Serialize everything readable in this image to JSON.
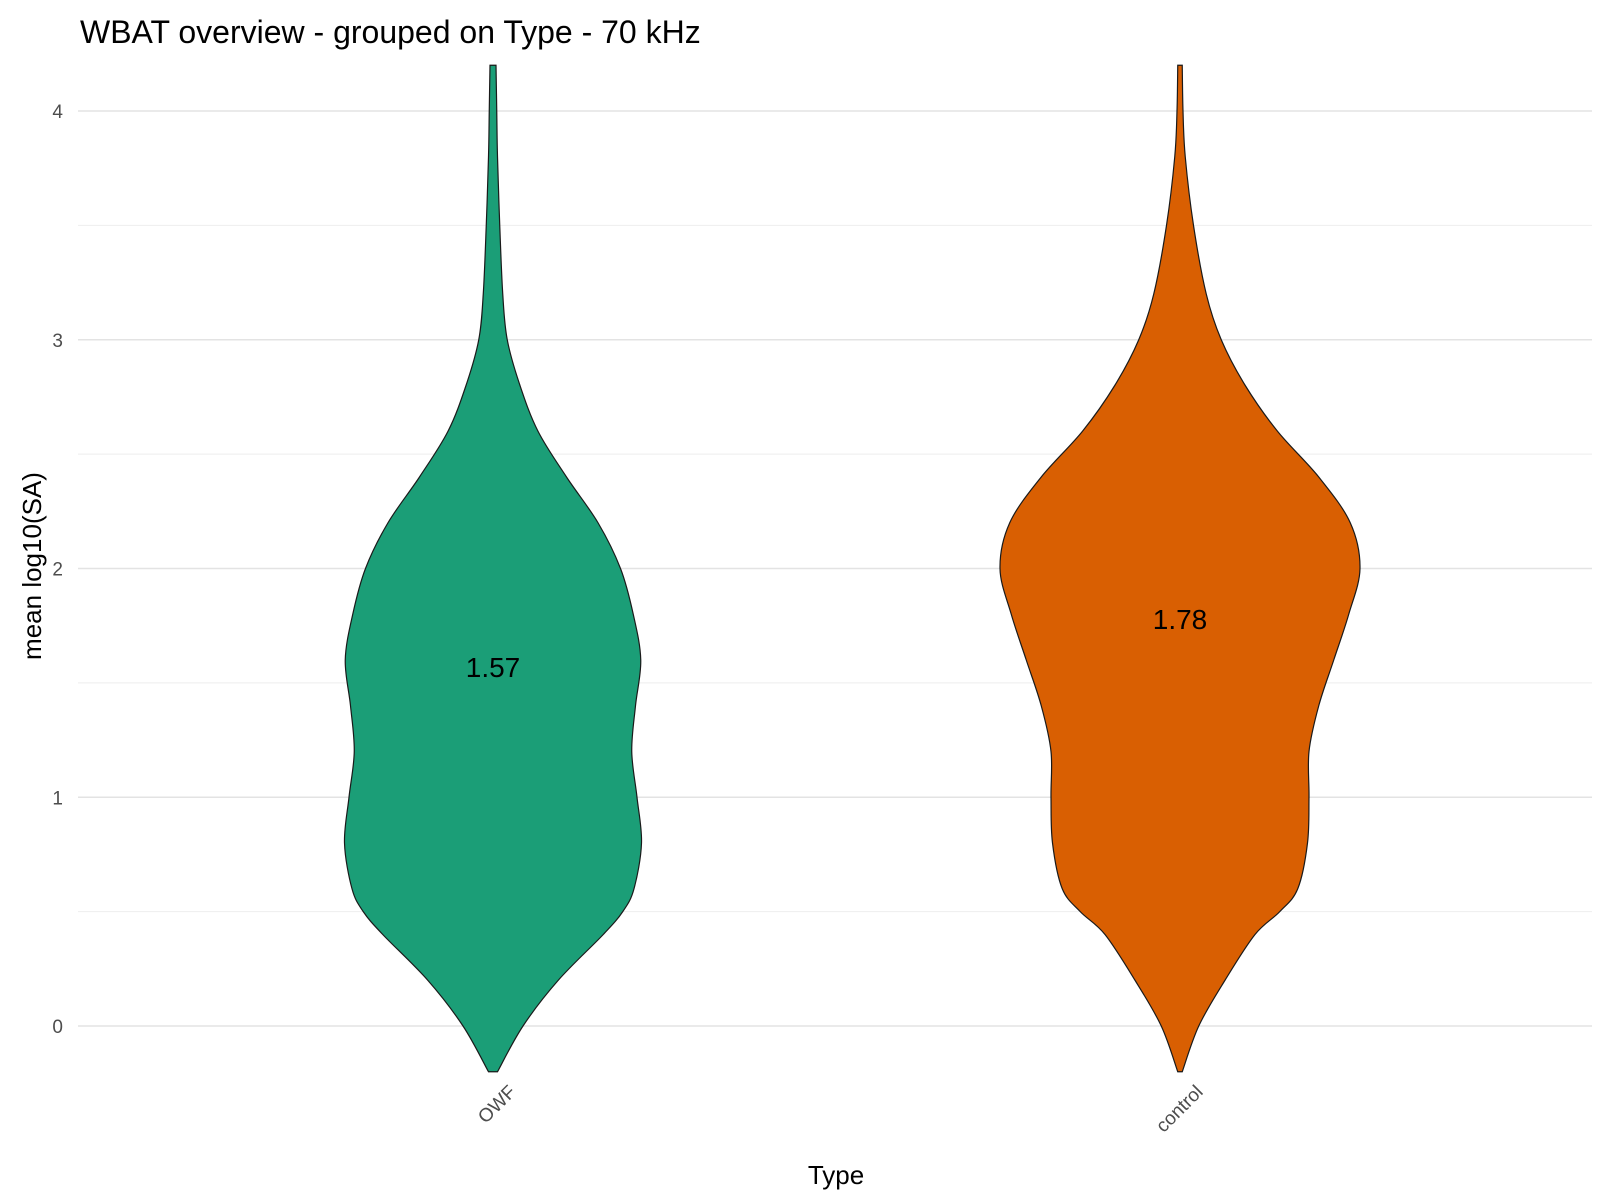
{
  "chart_data": {
    "type": "violin",
    "title": "WBAT overview - grouped on Type - 70 kHz",
    "xlabel": "Type",
    "ylabel": "mean log10(SA)",
    "ylim": [
      -0.2,
      4.2
    ],
    "yticks": [
      0,
      1,
      2,
      3,
      4
    ],
    "grid": true,
    "categories": [
      "OWF",
      "control"
    ],
    "colors": [
      "#1b9e77",
      "#d95f02"
    ],
    "means": [
      1.57,
      1.78
    ],
    "mean_labels": [
      "1.57",
      "1.78"
    ],
    "density_y": [
      -0.2,
      0.0,
      0.2,
      0.4,
      0.5,
      0.6,
      0.8,
      1.0,
      1.2,
      1.4,
      1.6,
      1.8,
      2.0,
      2.2,
      2.4,
      2.6,
      2.8,
      3.0,
      3.2,
      3.5,
      3.8,
      4.0,
      4.2
    ],
    "series": [
      {
        "name": "OWF",
        "halfwidth": [
          0.06,
          0.4,
          0.87,
          1.47,
          1.73,
          1.88,
          1.98,
          1.92,
          1.85,
          1.9,
          1.97,
          1.87,
          1.7,
          1.4,
          0.98,
          0.6,
          0.36,
          0.19,
          0.13,
          0.09,
          0.06,
          0.05,
          0.04
        ]
      },
      {
        "name": "control",
        "halfwidth": [
          0.03,
          0.25,
          0.6,
          1.0,
          1.33,
          1.57,
          1.7,
          1.72,
          1.72,
          1.85,
          2.05,
          2.25,
          2.4,
          2.27,
          1.85,
          1.3,
          0.87,
          0.55,
          0.35,
          0.18,
          0.07,
          0.04,
          0.03
        ]
      }
    ]
  }
}
